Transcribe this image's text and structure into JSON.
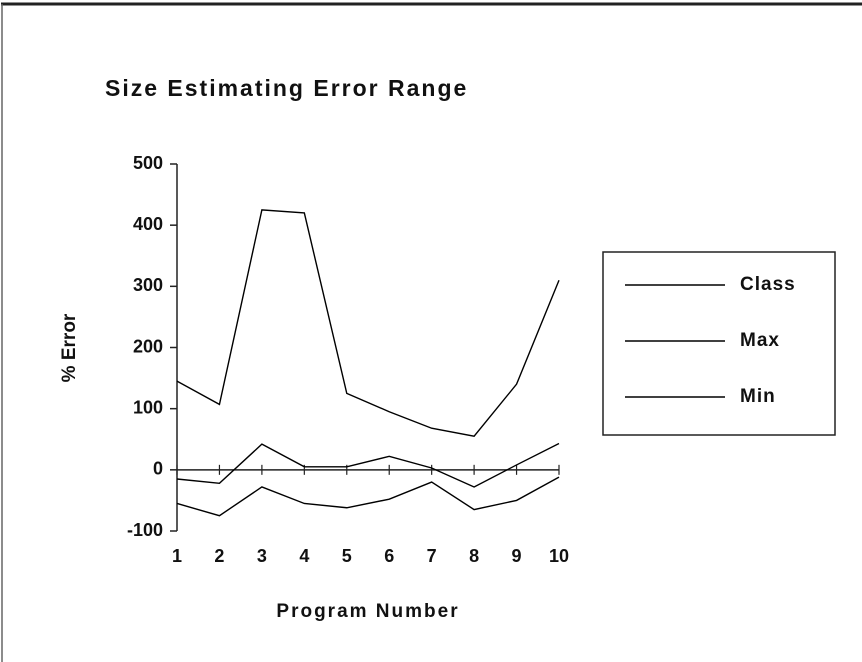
{
  "chart_data": {
    "type": "line",
    "title": "Size Estimating Error Range",
    "x_label": "Program Number",
    "y_label": "% Error",
    "categories": [
      "1",
      "2",
      "3",
      "4",
      "5",
      "6",
      "7",
      "8",
      "9",
      "10"
    ],
    "series": [
      {
        "name": "Class",
        "color": "#000000",
        "values": [
          -15,
          -22,
          42,
          5,
          5,
          22,
          3,
          -28,
          8,
          43
        ]
      },
      {
        "name": "Max",
        "color": "#000000",
        "values": [
          145,
          107,
          425,
          420,
          125,
          95,
          68,
          55,
          140,
          310
        ]
      },
      {
        "name": "Min",
        "color": "#000000",
        "values": [
          -55,
          -75,
          -28,
          -55,
          -62,
          -48,
          -20,
          -65,
          -50,
          -12
        ]
      }
    ],
    "ylim": [
      -100,
      500
    ],
    "yticks": [
      -100,
      0,
      100,
      200,
      300,
      400,
      500
    ],
    "legend": "right",
    "grid": false
  }
}
